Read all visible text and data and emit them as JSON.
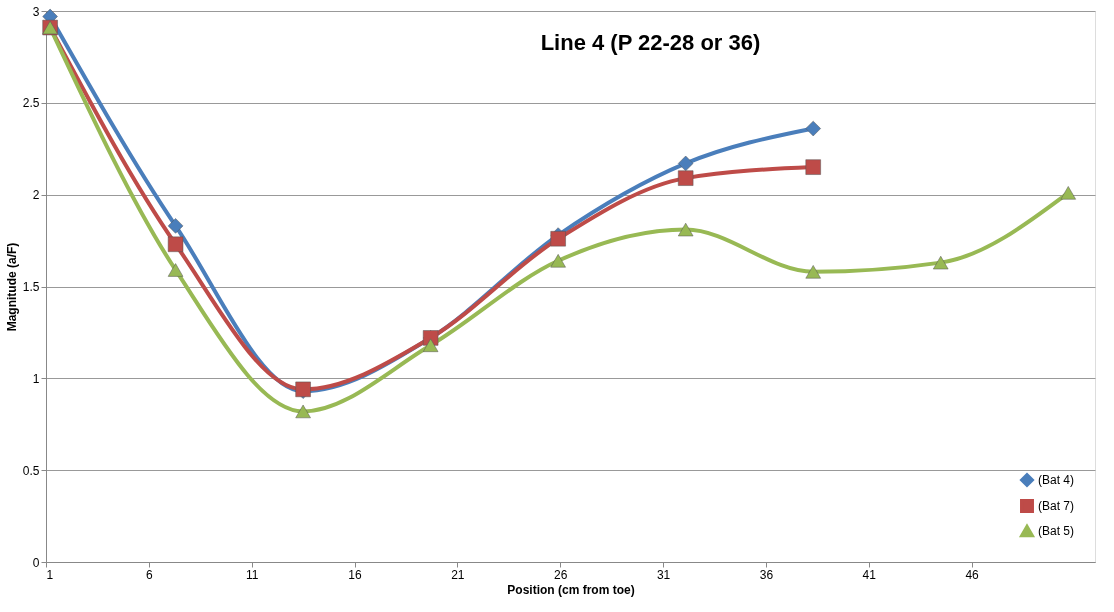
{
  "chart_data": {
    "type": "line",
    "title": "Line 4 (P 22-28 or 36)",
    "xlabel": "Position (cm from toe)",
    "ylabel": "Magnitude (a/F)",
    "xlim": [
      1,
      52
    ],
    "xticks": [
      1,
      6,
      11,
      16,
      21,
      26,
      31,
      36,
      41,
      46
    ],
    "ylim": [
      0,
      3
    ],
    "yticks": [
      0,
      0.5,
      1,
      1.5,
      2,
      2.5,
      3
    ],
    "grid": "y",
    "legend": "bottom right",
    "series": [
      {
        "name": "(Bat 4)",
        "color": "#4a7ebb",
        "marker": "diamond",
        "x": [
          1.2,
          7.3,
          13.5,
          19.7,
          25.9,
          32.1,
          38.3
        ],
        "values": [
          2.97,
          1.83,
          0.93,
          1.22,
          1.78,
          2.17,
          2.36
        ]
      },
      {
        "name": "(Bat 7)",
        "color": "#be4b48",
        "marker": "square",
        "x": [
          1.2,
          7.3,
          13.5,
          19.7,
          25.9,
          32.1,
          38.3
        ],
        "values": [
          2.91,
          1.73,
          0.94,
          1.22,
          1.76,
          2.09,
          2.15
        ]
      },
      {
        "name": "(Bat 5)",
        "color": "#98b954",
        "marker": "triangle",
        "x": [
          1.2,
          7.3,
          13.5,
          19.7,
          25.9,
          32.1,
          38.3,
          44.5,
          50.7
        ],
        "values": [
          2.91,
          1.59,
          0.82,
          1.18,
          1.64,
          1.81,
          1.58,
          1.63,
          2.01
        ]
      }
    ]
  }
}
